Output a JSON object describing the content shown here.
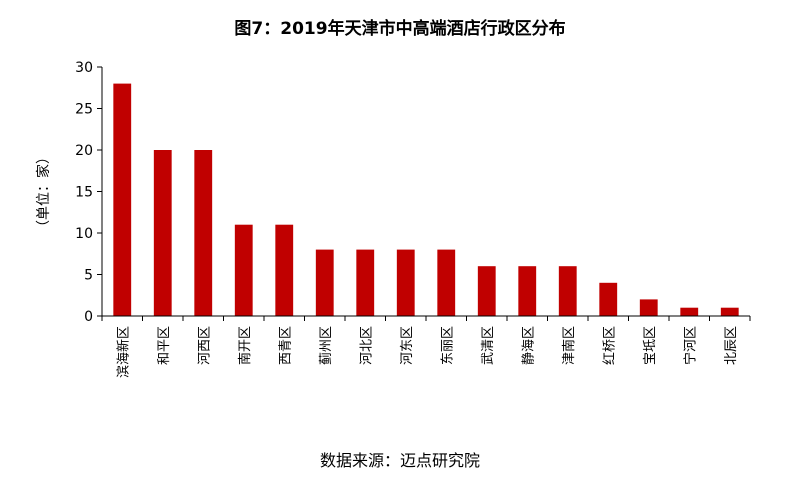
{
  "chart_data": {
    "type": "bar",
    "title": "图7：2019年天津市中高端酒店行政区分布",
    "xlabel": "",
    "ylabel": "（单位：家）",
    "ylim": [
      0,
      30
    ],
    "yticks": [
      0,
      5,
      10,
      15,
      20,
      25,
      30
    ],
    "grid": false,
    "legend": "none",
    "bar_color": "#C00000",
    "categories": [
      "滨海新区",
      "和平区",
      "河西区",
      "南开区",
      "西青区",
      "蓟州区",
      "河北区",
      "河东区",
      "东丽区",
      "武清区",
      "静海区",
      "津南区",
      "红桥区",
      "宝坻区",
      "宁河区",
      "北辰区"
    ],
    "values": [
      28,
      20,
      20,
      11,
      11,
      8,
      8,
      8,
      8,
      6,
      6,
      6,
      4,
      2,
      1,
      1
    ]
  },
  "source": "数据来源：迈点研究院"
}
